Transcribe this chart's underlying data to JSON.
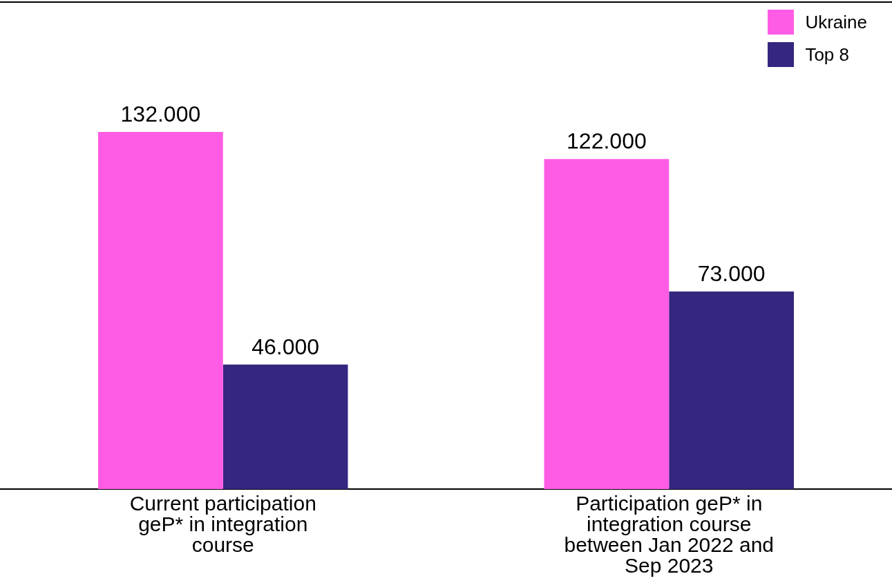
{
  "chart_data": {
    "type": "bar",
    "categories": [
      "Current participation geP* in integration course",
      "Participation geP* in integration course between Jan 2022 and Sep 2023"
    ],
    "series": [
      {
        "name": "Ukraine",
        "color": "#ff5ce6",
        "values": [
          132000,
          122000
        ],
        "value_labels": [
          "132.000",
          "122.000"
        ]
      },
      {
        "name": "Top 8",
        "color": "#352680",
        "values": [
          46000,
          73000
        ],
        "value_labels": [
          "46.000",
          "73.000"
        ]
      }
    ],
    "ylim": [
      0,
      180000
    ],
    "legend": "top right"
  }
}
